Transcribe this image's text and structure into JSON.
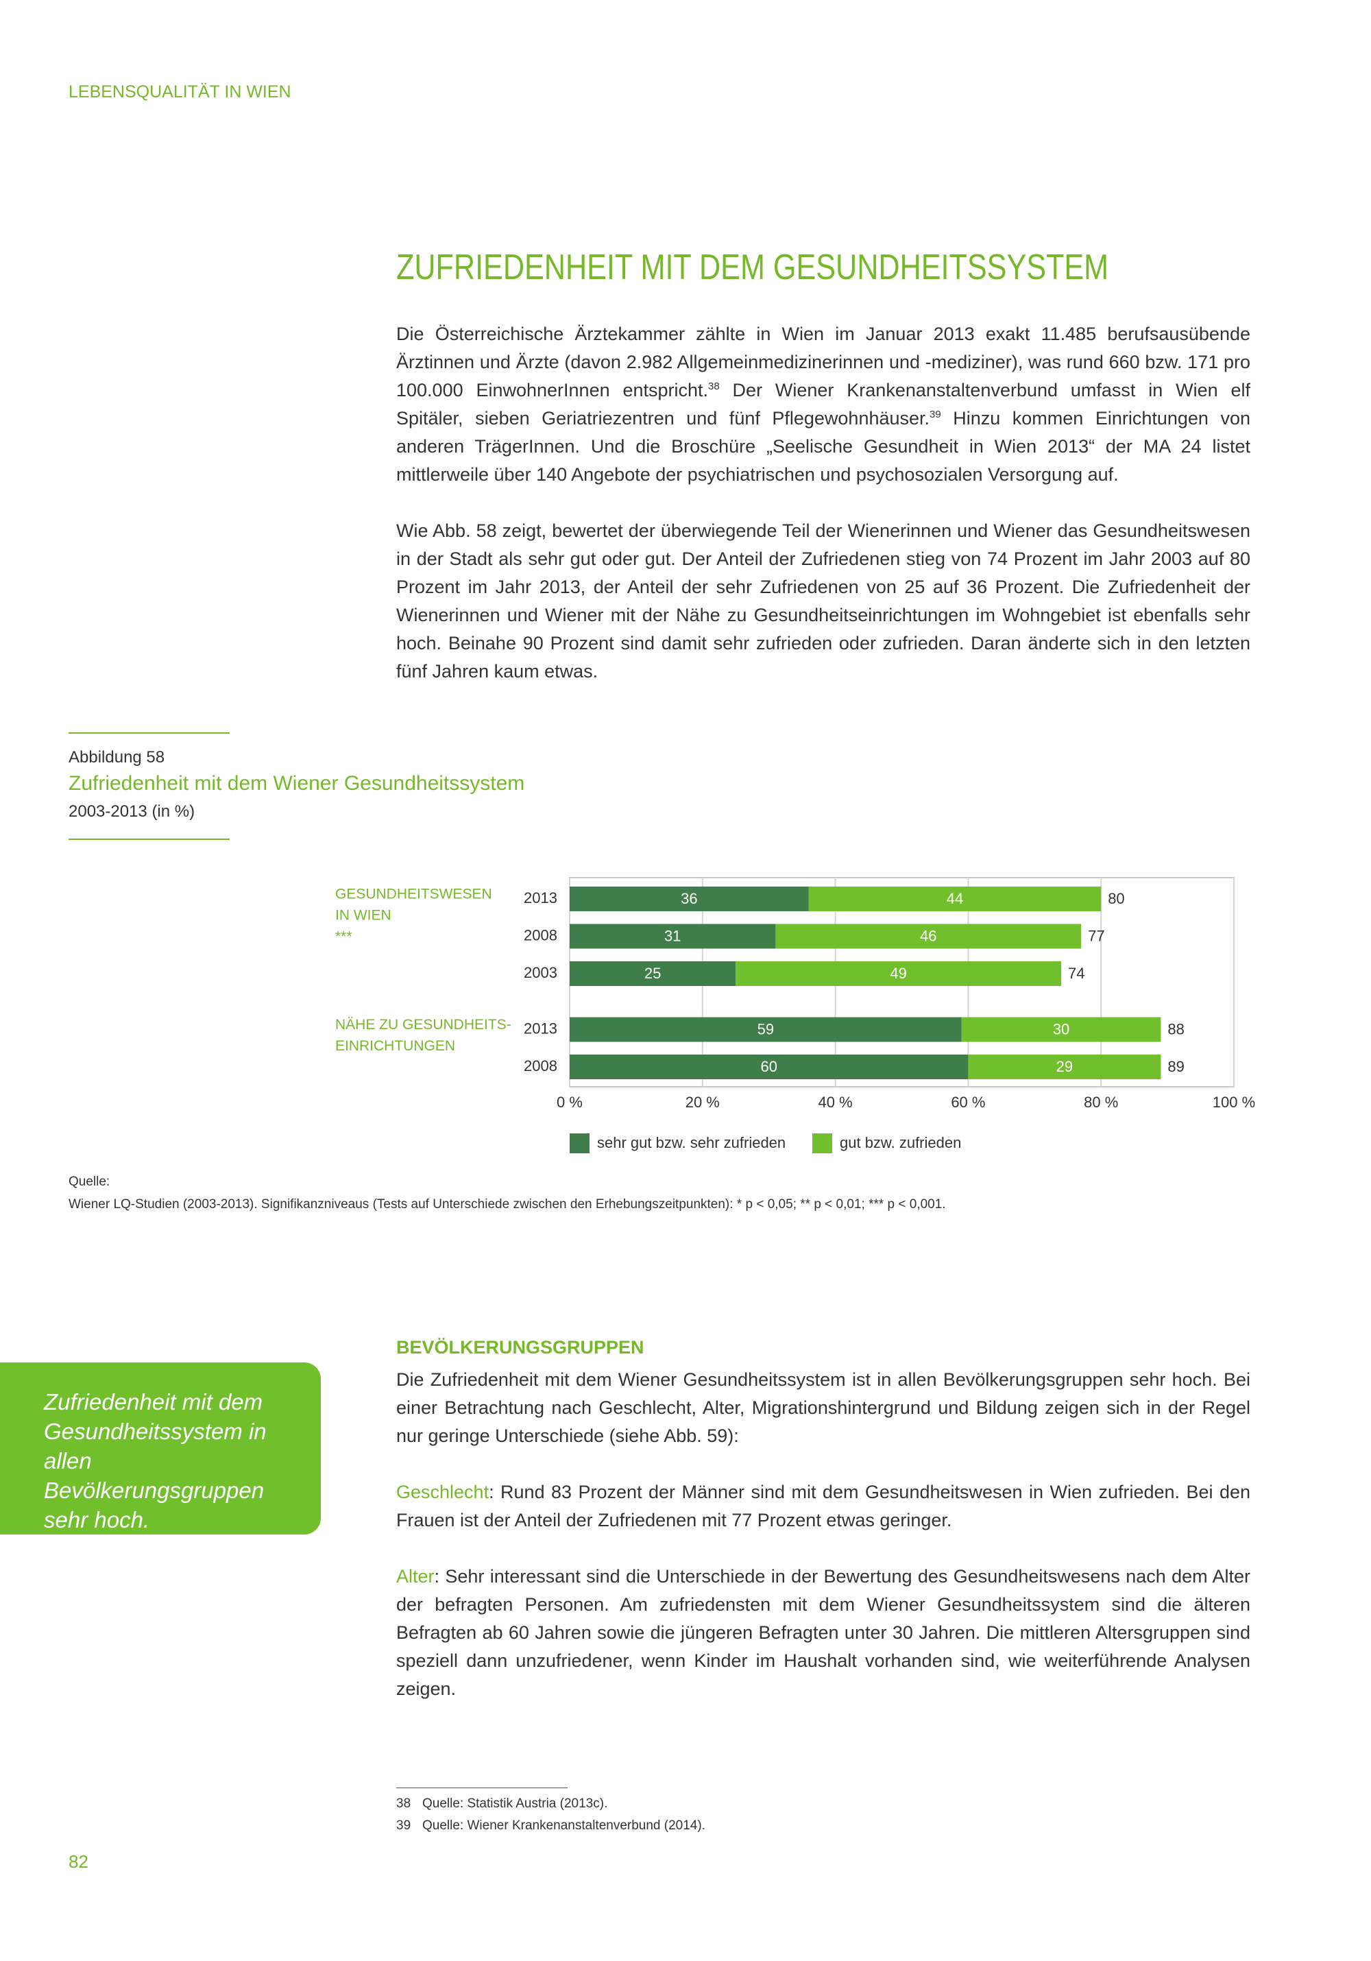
{
  "header": {
    "running_title": "LEBENSQUALITÄT IN WIEN"
  },
  "article": {
    "title": "ZUFRIEDENHEIT MIT DEM GESUNDHEITSSYSTEM",
    "paragraphs": [
      [
        {
          "text": "Die Österreichische Ärztekammer zählte in Wien im Januar 2013 exakt 11.485 berufsausübende Ärztinnen und Ärzte (davon 2.982 Allgemeinmedizinerinnen und -mediziner), was rund 660 bzw. 171 pro 100.000 EinwohnerInnen entspricht."
        },
        {
          "sup": "38"
        },
        {
          "text": " Der Wiener Krankenanstaltenverbund umfasst in Wien elf Spitäler, sieben Geriatriezentren und fünf Pflegewohnhäuser."
        },
        {
          "sup": "39"
        },
        {
          "text": " Hinzu kommen Einrichtungen von anderen TrägerInnen. Und die Broschüre „Seelische Gesundheit in Wien 2013“ der MA 24 listet mittlerweile über 140 Angebote der psychiatrischen und psychosozialen Versorgung auf."
        }
      ],
      [
        {
          "text": "Wie Abb. 58 zeigt, bewertet der überwiegende Teil der Wienerinnen und Wiener das Gesundheitswesen in der Stadt als sehr gut oder gut. Der Anteil der Zufriedenen stieg von 74 Prozent im Jahr 2003 auf 80 Prozent im Jahr 2013, der Anteil der sehr Zufriedenen von 25 auf 36 Prozent. Die Zufriedenheit der Wienerinnen und Wiener mit der Nähe zu Gesundheitseinrichtungen im Wohngebiet ist ebenfalls sehr hoch. Beinahe 90 Prozent sind damit sehr zufrieden oder zufrieden. Daran änderte sich in den letzten fünf Jahren kaum etwas."
        }
      ]
    ]
  },
  "figure": {
    "label": "Abbildung 58",
    "title": "Zufriedenheit mit dem Wiener Gesundheitssystem",
    "subtitle": "2003-2013 (in %)",
    "source_label": "Quelle:",
    "source": "Wiener LQ-Studien (2003-2013). Signifikanzniveaus (Tests auf Unterschiede zwischen den Erhebungszeitpunkten): * p < 0,05; ** p < 0,01; *** p < 0,001."
  },
  "chart_data": {
    "type": "stacked_bar_horizontal",
    "categories": [
      "2013",
      "2008",
      "2003",
      "2013",
      "2008"
    ],
    "group_labels": [
      [
        "GESUNDHEITSWESEN",
        "IN WIEN",
        "***"
      ],
      null,
      null,
      [
        "NÄHE ZU GESUNDHEITS-",
        "EINRICHTUNGEN"
      ],
      null
    ],
    "series": [
      {
        "name": "sehr gut bzw. sehr zufrieden",
        "color": "#3f7d4b",
        "values": [
          36,
          31,
          25,
          59,
          60
        ]
      },
      {
        "name": "gut bzw. zufrieden",
        "color": "#72bf2e",
        "values": [
          44,
          46,
          49,
          30,
          29
        ]
      }
    ],
    "totals": [
      80,
      77,
      74,
      88,
      89
    ],
    "xlim": [
      0,
      100
    ],
    "xticks": [
      {
        "value": 0,
        "label": "0 %"
      },
      {
        "value": 20,
        "label": "20 %"
      },
      {
        "value": 40,
        "label": "40 %"
      },
      {
        "value": 60,
        "label": "60 %"
      },
      {
        "value": 80,
        "label": "80 %"
      },
      {
        "value": 100,
        "label": "100 %"
      }
    ],
    "grid": true,
    "legend": "bottom"
  },
  "callout": {
    "text": "Zufriedenheit mit dem Gesundheitssystem in allen Bevölkerungsgruppen sehr hoch."
  },
  "subsection": {
    "title": "BEVÖLKERUNGSGRUPPEN",
    "paragraphs": [
      [
        {
          "text": "Die Zufriedenheit mit dem Wiener Gesundheitssystem ist in allen Bevölkerungsgruppen sehr hoch. Bei einer Betrachtung nach Geschlecht, Alter, Migrationshintergrund und Bildung zeigen sich in der Regel nur geringe Unterschiede (siehe Abb. 59):"
        }
      ],
      [
        {
          "lead": "Geschlecht"
        },
        {
          "text": ": Rund 83 Prozent der Männer sind mit dem Gesundheitswesen in Wien zufrieden. Bei den Frauen ist der Anteil der Zufriedenen mit 77 Prozent etwas geringer."
        }
      ],
      [
        {
          "lead": "Alter"
        },
        {
          "text": ": Sehr interessant sind die Unterschiede in der Bewertung des Gesundheitswesens nach dem Alter der befragten Personen. Am zufriedensten mit dem Wiener Gesundheitssystem sind die älteren Befragten ab 60 Jahren sowie die jüngeren Befragten unter 30 Jahren. Die mittleren Altersgruppen sind speziell dann unzufriedener, wenn Kinder im Haushalt vorhanden sind, wie weiterführende Analysen zeigen."
        }
      ]
    ]
  },
  "footnotes": [
    {
      "number": "38",
      "text": "Quelle: Statistik Austria (2013c)."
    },
    {
      "number": "39",
      "text": "Quelle: Wiener Krankenanstaltenverbund (2014)."
    }
  ],
  "page_number": "82"
}
